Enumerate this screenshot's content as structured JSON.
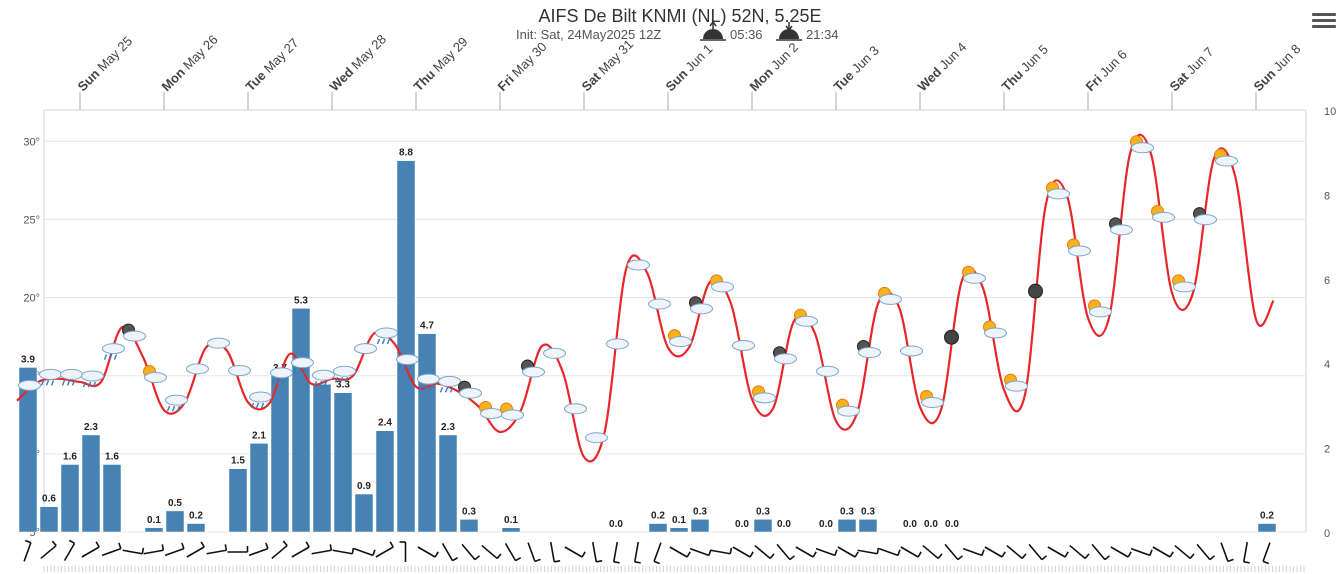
{
  "header": {
    "title": "AIFS De Bilt KNMI (NL) 52N, 5.25E",
    "init_text": "Init: Sat, 24May2025 12Z",
    "sunrise": "05:36",
    "sunset": "21:34"
  },
  "menu_icon": "hamburger-menu-icon",
  "chart_data": {
    "type": "bar+line",
    "days": [
      {
        "dow": "Sun",
        "date": "May 25"
      },
      {
        "dow": "Mon",
        "date": "May 26"
      },
      {
        "dow": "Tue",
        "date": "May 27"
      },
      {
        "dow": "Wed",
        "date": "May 28"
      },
      {
        "dow": "Thu",
        "date": "May 29"
      },
      {
        "dow": "Fri",
        "date": "May 30"
      },
      {
        "dow": "Sat",
        "date": "May 31"
      },
      {
        "dow": "Sun",
        "date": "Jun 1"
      },
      {
        "dow": "Mon",
        "date": "Jun 2"
      },
      {
        "dow": "Tue",
        "date": "Jun 3"
      },
      {
        "dow": "Wed",
        "date": "Jun 4"
      },
      {
        "dow": "Thu",
        "date": "Jun 5"
      },
      {
        "dow": "Fri",
        "date": "Jun 6"
      },
      {
        "dow": "Sat",
        "date": "Jun 7"
      },
      {
        "dow": "Sun",
        "date": "Jun 8"
      }
    ],
    "temp_axis": {
      "ticks": [
        "5°",
        "10°",
        "15°",
        "20°",
        "25°",
        "30°"
      ],
      "min": 5,
      "max": 32,
      "unit": "°C"
    },
    "precip_axis": {
      "ticks": [
        "0",
        "2",
        "4",
        "6",
        "8",
        "10"
      ],
      "min": 0,
      "max": 10,
      "unit": "mm"
    },
    "precip_series": {
      "step_hours": 6,
      "start": "2025-05-24 18Z",
      "values": [
        3.9,
        0.6,
        1.6,
        2.3,
        1.6,
        0,
        0.1,
        0.5,
        0.2,
        0,
        1.5,
        2.1,
        3.7,
        5.3,
        3.5,
        3.3,
        0.9,
        2.4,
        8.8,
        4.7,
        2.3,
        0.3,
        0,
        0.1,
        0,
        0,
        0,
        0,
        0.0,
        0,
        0.2,
        0.1,
        0.3,
        0,
        0.0,
        0.3,
        0.0,
        0,
        0.0,
        0.3,
        0.3,
        0,
        0.0,
        0.0,
        0.0,
        0,
        0,
        0,
        0,
        0,
        0,
        0,
        0,
        0,
        0,
        0,
        0,
        0,
        0,
        0.2
      ],
      "labels": [
        "3.9",
        "0.6",
        "1.6",
        "2.3",
        "1.6",
        "",
        "0.1",
        "0.5",
        "0.2",
        "",
        "1.5",
        "2.1",
        "3.7",
        "5.3",
        "3.5",
        "3.3",
        "0.9",
        "2.4",
        "8.8",
        "4.7",
        "2.3",
        "0.3",
        "",
        "0.1",
        "",
        "",
        "",
        "",
        "0.0",
        "",
        "0.2",
        "0.1",
        "0.3",
        "",
        "0.0",
        "0.3",
        "0.0",
        "",
        "0.0",
        "0.3",
        "0.3",
        "",
        "0.0",
        "0.0",
        "0.0",
        "",
        "",
        "",
        "",
        "",
        "",
        "",
        "",
        "",
        "",
        "",
        "",
        "",
        "",
        "0.2"
      ]
    },
    "temperature_series": {
      "name": "Temperature",
      "color": "#e8262a",
      "points": [
        [
          0,
          13.4
        ],
        [
          6,
          14.6
        ],
        [
          12,
          14.8
        ],
        [
          18,
          14.6
        ],
        [
          24,
          14.6
        ],
        [
          30,
          18.1
        ],
        [
          36,
          16.2
        ],
        [
          42,
          12.8
        ],
        [
          48,
          13.3
        ],
        [
          54,
          16.8
        ],
        [
          60,
          16.6
        ],
        [
          66,
          13.3
        ],
        [
          72,
          13.2
        ],
        [
          78,
          16.4
        ],
        [
          84,
          14.5
        ],
        [
          90,
          14.8
        ],
        [
          96,
          15.0
        ],
        [
          102,
          17.7
        ],
        [
          108,
          17.0
        ],
        [
          114,
          14.3
        ],
        [
          120,
          14.5
        ],
        [
          126,
          14.0
        ],
        [
          132,
          13.0
        ],
        [
          138,
          11.4
        ],
        [
          144,
          12.8
        ],
        [
          150,
          16.9
        ],
        [
          156,
          15.2
        ],
        [
          162,
          9.8
        ],
        [
          168,
          11.5
        ],
        [
          174,
          21.8
        ],
        [
          180,
          21.6
        ],
        [
          186,
          16.8
        ],
        [
          192,
          16.8
        ],
        [
          198,
          21.0
        ],
        [
          204,
          19.6
        ],
        [
          210,
          13.5
        ],
        [
          216,
          12.9
        ],
        [
          222,
          18.5
        ],
        [
          228,
          17.7
        ],
        [
          234,
          12.1
        ],
        [
          240,
          12.6
        ],
        [
          246,
          19.6
        ],
        [
          252,
          19.4
        ],
        [
          258,
          13.0
        ],
        [
          264,
          12.8
        ],
        [
          270,
          21.1
        ],
        [
          276,
          20.6
        ],
        [
          282,
          14.1
        ],
        [
          288,
          13.8
        ],
        [
          294,
          26.0
        ],
        [
          300,
          26.5
        ],
        [
          306,
          18.7
        ],
        [
          312,
          18.7
        ],
        [
          318,
          29.2
        ],
        [
          324,
          29.2
        ],
        [
          330,
          20.3
        ],
        [
          336,
          20.3
        ],
        [
          342,
          28.9
        ],
        [
          348,
          27.8
        ],
        [
          354,
          18.6
        ],
        [
          359,
          19.8
        ]
      ]
    },
    "weather_icons": [
      "cloudy",
      "rain",
      "partly-sunny",
      "clear-night",
      "thunderstorm",
      "partly-sunny-day",
      "moon"
    ],
    "bar_color": "#4682b4",
    "background_bands": "#ffffff",
    "grid": true
  }
}
